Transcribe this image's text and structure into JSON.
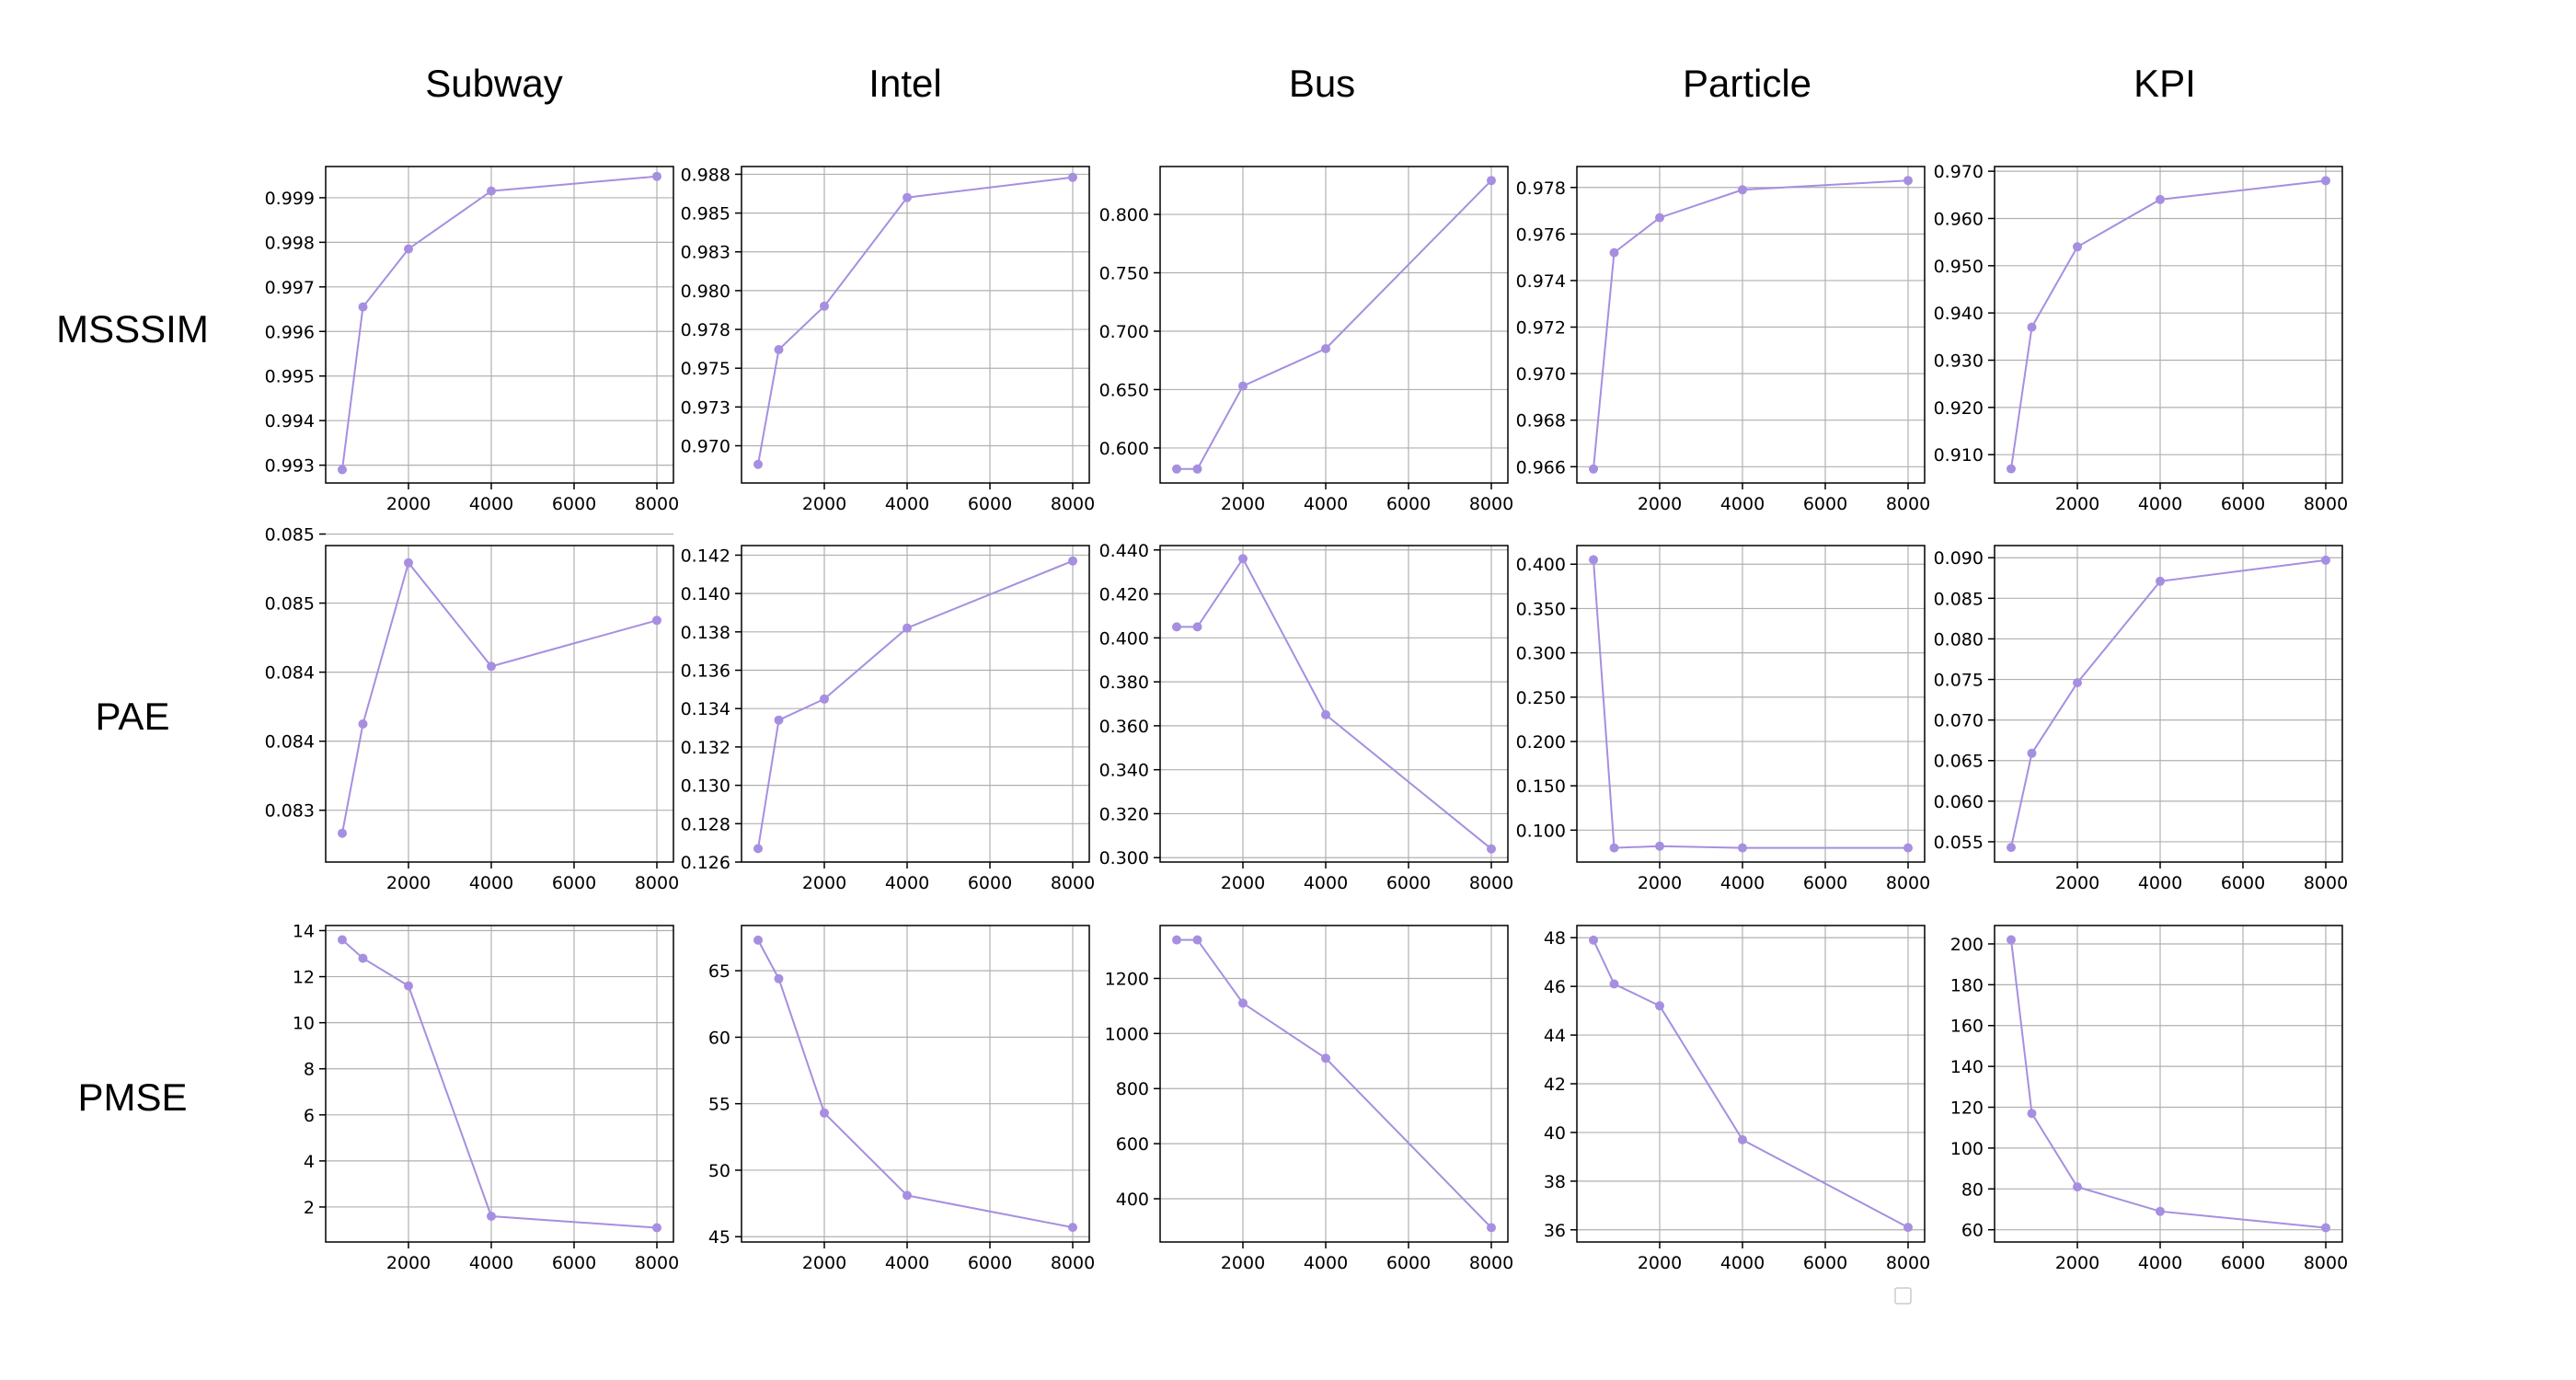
{
  "figure": {
    "columns": [
      "Subway",
      "Intel",
      "Bus",
      "Particle",
      "KPI"
    ],
    "rows": [
      "MSSSIM",
      "PAE",
      "PMSE"
    ],
    "series_color": "#a68fe0",
    "legend": {
      "placement": "lower-right",
      "entries": []
    }
  },
  "chart_data": [
    {
      "type": "line",
      "title": "Subway",
      "row": "MSSSIM",
      "x": [
        400,
        900,
        2000,
        4000,
        8000
      ],
      "y": [
        0.9929,
        0.99655,
        0.99785,
        0.99915,
        0.99948
      ],
      "xticks": [
        2000,
        4000,
        6000,
        8000
      ],
      "yticks": [
        0.993,
        0.994,
        0.995,
        0.996,
        0.997,
        0.998,
        0.999
      ],
      "ytick_labels": [
        "0.993",
        "0.994",
        "0.995",
        "0.996",
        "0.997",
        "0.998",
        "0.999"
      ],
      "xlim": [
        0,
        8400
      ],
      "ylim": [
        0.9926,
        0.9997
      ],
      "grid": true
    },
    {
      "type": "line",
      "title": "Intel",
      "row": "MSSSIM",
      "x": [
        400,
        900,
        2000,
        4000,
        8000
      ],
      "y": [
        0.9688,
        0.9762,
        0.979,
        0.986,
        0.9873
      ],
      "xticks": [
        2000,
        4000,
        6000,
        8000
      ],
      "yticks": [
        0.97,
        0.9725,
        0.975,
        0.9775,
        0.98,
        0.9825,
        0.985,
        0.9875
      ],
      "ytick_labels": [
        "0.970",
        "0.973",
        "0.975",
        "0.978",
        "0.980",
        "0.983",
        "0.985",
        "0.988"
      ],
      "xlim": [
        0,
        8400
      ],
      "ylim": [
        0.9676,
        0.988
      ],
      "grid": true
    },
    {
      "type": "line",
      "title": "Bus",
      "row": "MSSSIM",
      "x": [
        400,
        900,
        2000,
        4000,
        8000
      ],
      "y": [
        0.582,
        0.582,
        0.653,
        0.685,
        0.829
      ],
      "xticks": [
        2000,
        4000,
        6000,
        8000
      ],
      "yticks": [
        0.6,
        0.65,
        0.7,
        0.75,
        0.8
      ],
      "ytick_labels": [
        "0.600",
        "0.650",
        "0.700",
        "0.750",
        "0.800"
      ],
      "xlim": [
        0,
        8400
      ],
      "ylim": [
        0.57,
        0.841
      ],
      "grid": true
    },
    {
      "type": "line",
      "title": "Particle",
      "row": "MSSSIM",
      "x": [
        400,
        900,
        2000,
        4000,
        8000
      ],
      "y": [
        0.9659,
        0.9752,
        0.9767,
        0.9779,
        0.9783
      ],
      "xticks": [
        2000,
        4000,
        6000,
        8000
      ],
      "yticks": [
        0.966,
        0.968,
        0.97,
        0.972,
        0.974,
        0.976,
        0.978
      ],
      "ytick_labels": [
        "0.966",
        "0.968",
        "0.970",
        "0.972",
        "0.974",
        "0.976",
        "0.978"
      ],
      "xlim": [
        0,
        8400
      ],
      "ylim": [
        0.9653,
        0.9789
      ],
      "grid": true
    },
    {
      "type": "line",
      "title": "KPI",
      "row": "MSSSIM",
      "x": [
        400,
        900,
        2000,
        4000,
        8000
      ],
      "y": [
        0.907,
        0.937,
        0.954,
        0.964,
        0.968
      ],
      "xticks": [
        2000,
        4000,
        6000,
        8000
      ],
      "yticks": [
        0.91,
        0.92,
        0.93,
        0.94,
        0.95,
        0.96,
        0.97
      ],
      "ytick_labels": [
        "0.910",
        "0.920",
        "0.930",
        "0.940",
        "0.950",
        "0.960",
        "0.970"
      ],
      "xlim": [
        0,
        8400
      ],
      "ylim": [
        0.904,
        0.971
      ],
      "grid": true
    },
    {
      "type": "line",
      "title": "Subway",
      "row": "PAE",
      "x": [
        400,
        900,
        2000,
        4000,
        8000
      ],
      "y": [
        0.083,
        0.08395,
        0.08535,
        0.08445,
        0.08485
      ],
      "xticks": [
        2000,
        4000,
        6000,
        8000
      ],
      "yticks": [
        0.0832,
        0.0838,
        0.0844,
        0.085,
        0.0856
      ],
      "ytick_labels": [
        "0.083",
        "0.084",
        "0.084",
        "0.085",
        "0.085"
      ],
      "xlim": [
        0,
        8400
      ],
      "ylim": [
        0.08275,
        0.0855
      ],
      "grid": true
    },
    {
      "type": "line",
      "title": "Intel",
      "row": "PAE",
      "x": [
        400,
        900,
        2000,
        4000,
        8000
      ],
      "y": [
        0.1267,
        0.1334,
        0.1345,
        0.1382,
        0.1417
      ],
      "xticks": [
        2000,
        4000,
        6000,
        8000
      ],
      "yticks": [
        0.126,
        0.128,
        0.13,
        0.132,
        0.134,
        0.136,
        0.138,
        0.14,
        0.142
      ],
      "ytick_labels": [
        "0.126",
        "0.128",
        "0.130",
        "0.132",
        "0.134",
        "0.136",
        "0.138",
        "0.140",
        "0.142"
      ],
      "xlim": [
        0,
        8400
      ],
      "ylim": [
        0.126,
        0.1425
      ],
      "grid": true
    },
    {
      "type": "line",
      "title": "Bus",
      "row": "PAE",
      "x": [
        400,
        900,
        2000,
        4000,
        8000
      ],
      "y": [
        0.405,
        0.405,
        0.436,
        0.365,
        0.304
      ],
      "xticks": [
        2000,
        4000,
        6000,
        8000
      ],
      "yticks": [
        0.3,
        0.32,
        0.34,
        0.36,
        0.38,
        0.4,
        0.42,
        0.44
      ],
      "ytick_labels": [
        "0.300",
        "0.320",
        "0.340",
        "0.360",
        "0.380",
        "0.400",
        "0.420",
        "0.440"
      ],
      "xlim": [
        0,
        8400
      ],
      "ylim": [
        0.298,
        0.442
      ],
      "grid": true
    },
    {
      "type": "line",
      "title": "Particle",
      "row": "PAE",
      "x": [
        400,
        900,
        2000,
        4000,
        8000
      ],
      "y": [
        0.405,
        0.08,
        0.082,
        0.08,
        0.08
      ],
      "xticks": [
        2000,
        4000,
        6000,
        8000
      ],
      "yticks": [
        0.1,
        0.15,
        0.2,
        0.25,
        0.3,
        0.35,
        0.4
      ],
      "ytick_labels": [
        "0.100",
        "0.150",
        "0.200",
        "0.250",
        "0.300",
        "0.350",
        "0.400"
      ],
      "xlim": [
        0,
        8400
      ],
      "ylim": [
        0.064,
        0.421
      ],
      "grid": true
    },
    {
      "type": "line",
      "title": "KPI",
      "row": "PAE",
      "x": [
        400,
        900,
        2000,
        4000,
        8000
      ],
      "y": [
        0.0543,
        0.0659,
        0.0746,
        0.0871,
        0.0897
      ],
      "xticks": [
        2000,
        4000,
        6000,
        8000
      ],
      "yticks": [
        0.055,
        0.06,
        0.065,
        0.07,
        0.075,
        0.08,
        0.085,
        0.09
      ],
      "ytick_labels": [
        "0.055",
        "0.060",
        "0.065",
        "0.070",
        "0.075",
        "0.080",
        "0.085",
        "0.090"
      ],
      "xlim": [
        0,
        8400
      ],
      "ylim": [
        0.0525,
        0.0915
      ],
      "grid": true
    },
    {
      "type": "line",
      "title": "Subway",
      "row": "PMSE",
      "x": [
        400,
        900,
        2000,
        4000,
        8000
      ],
      "y": [
        13.6,
        12.8,
        11.6,
        1.6,
        1.1
      ],
      "xticks": [
        2000,
        4000,
        6000,
        8000
      ],
      "yticks": [
        2,
        4,
        6,
        8,
        10,
        12,
        14
      ],
      "ytick_labels": [
        "2",
        "4",
        "6",
        "8",
        "10",
        "12",
        "14"
      ],
      "xlim": [
        0,
        8400
      ],
      "ylim": [
        0.48,
        14.22
      ],
      "grid": true
    },
    {
      "type": "line",
      "title": "Intel",
      "row": "PMSE",
      "x": [
        400,
        900,
        2000,
        4000,
        8000
      ],
      "y": [
        67.3,
        64.4,
        54.3,
        48.1,
        45.7
      ],
      "xticks": [
        2000,
        4000,
        6000,
        8000
      ],
      "yticks": [
        45,
        50,
        55,
        60,
        65
      ],
      "ytick_labels": [
        "45",
        "50",
        "55",
        "60",
        "65"
      ],
      "xlim": [
        0,
        8400
      ],
      "ylim": [
        44.6,
        68.4
      ],
      "grid": true
    },
    {
      "type": "line",
      "title": "Bus",
      "row": "PMSE",
      "x": [
        400,
        900,
        2000,
        4000,
        8000
      ],
      "y": [
        1340,
        1340,
        1110,
        910,
        295
      ],
      "xticks": [
        2000,
        4000,
        6000,
        8000
      ],
      "yticks": [
        400,
        600,
        800,
        1000,
        1200
      ],
      "ytick_labels": [
        "400",
        "600",
        "800",
        "1000",
        "1200"
      ],
      "xlim": [
        0,
        8400
      ],
      "ylim": [
        243,
        1392
      ],
      "grid": true
    },
    {
      "type": "line",
      "title": "Particle",
      "row": "PMSE",
      "x": [
        400,
        900,
        2000,
        4000,
        8000
      ],
      "y": [
        47.9,
        46.1,
        45.2,
        39.7,
        36.1
      ],
      "xticks": [
        2000,
        4000,
        6000,
        8000
      ],
      "yticks": [
        36,
        38,
        40,
        42,
        44,
        46,
        48
      ],
      "ytick_labels": [
        "36",
        "38",
        "40",
        "42",
        "44",
        "46",
        "48"
      ],
      "xlim": [
        0,
        8400
      ],
      "ylim": [
        35.5,
        48.5
      ],
      "grid": true
    },
    {
      "type": "line",
      "title": "KPI",
      "row": "PMSE",
      "x": [
        400,
        900,
        2000,
        4000,
        8000
      ],
      "y": [
        202,
        117,
        81,
        69,
        61
      ],
      "xticks": [
        2000,
        4000,
        6000,
        8000
      ],
      "yticks": [
        60,
        80,
        100,
        120,
        140,
        160,
        180,
        200
      ],
      "ytick_labels": [
        "60",
        "80",
        "100",
        "120",
        "140",
        "160",
        "180",
        "200"
      ],
      "xlim": [
        0,
        8400
      ],
      "ylim": [
        54,
        209
      ],
      "grid": true
    }
  ]
}
